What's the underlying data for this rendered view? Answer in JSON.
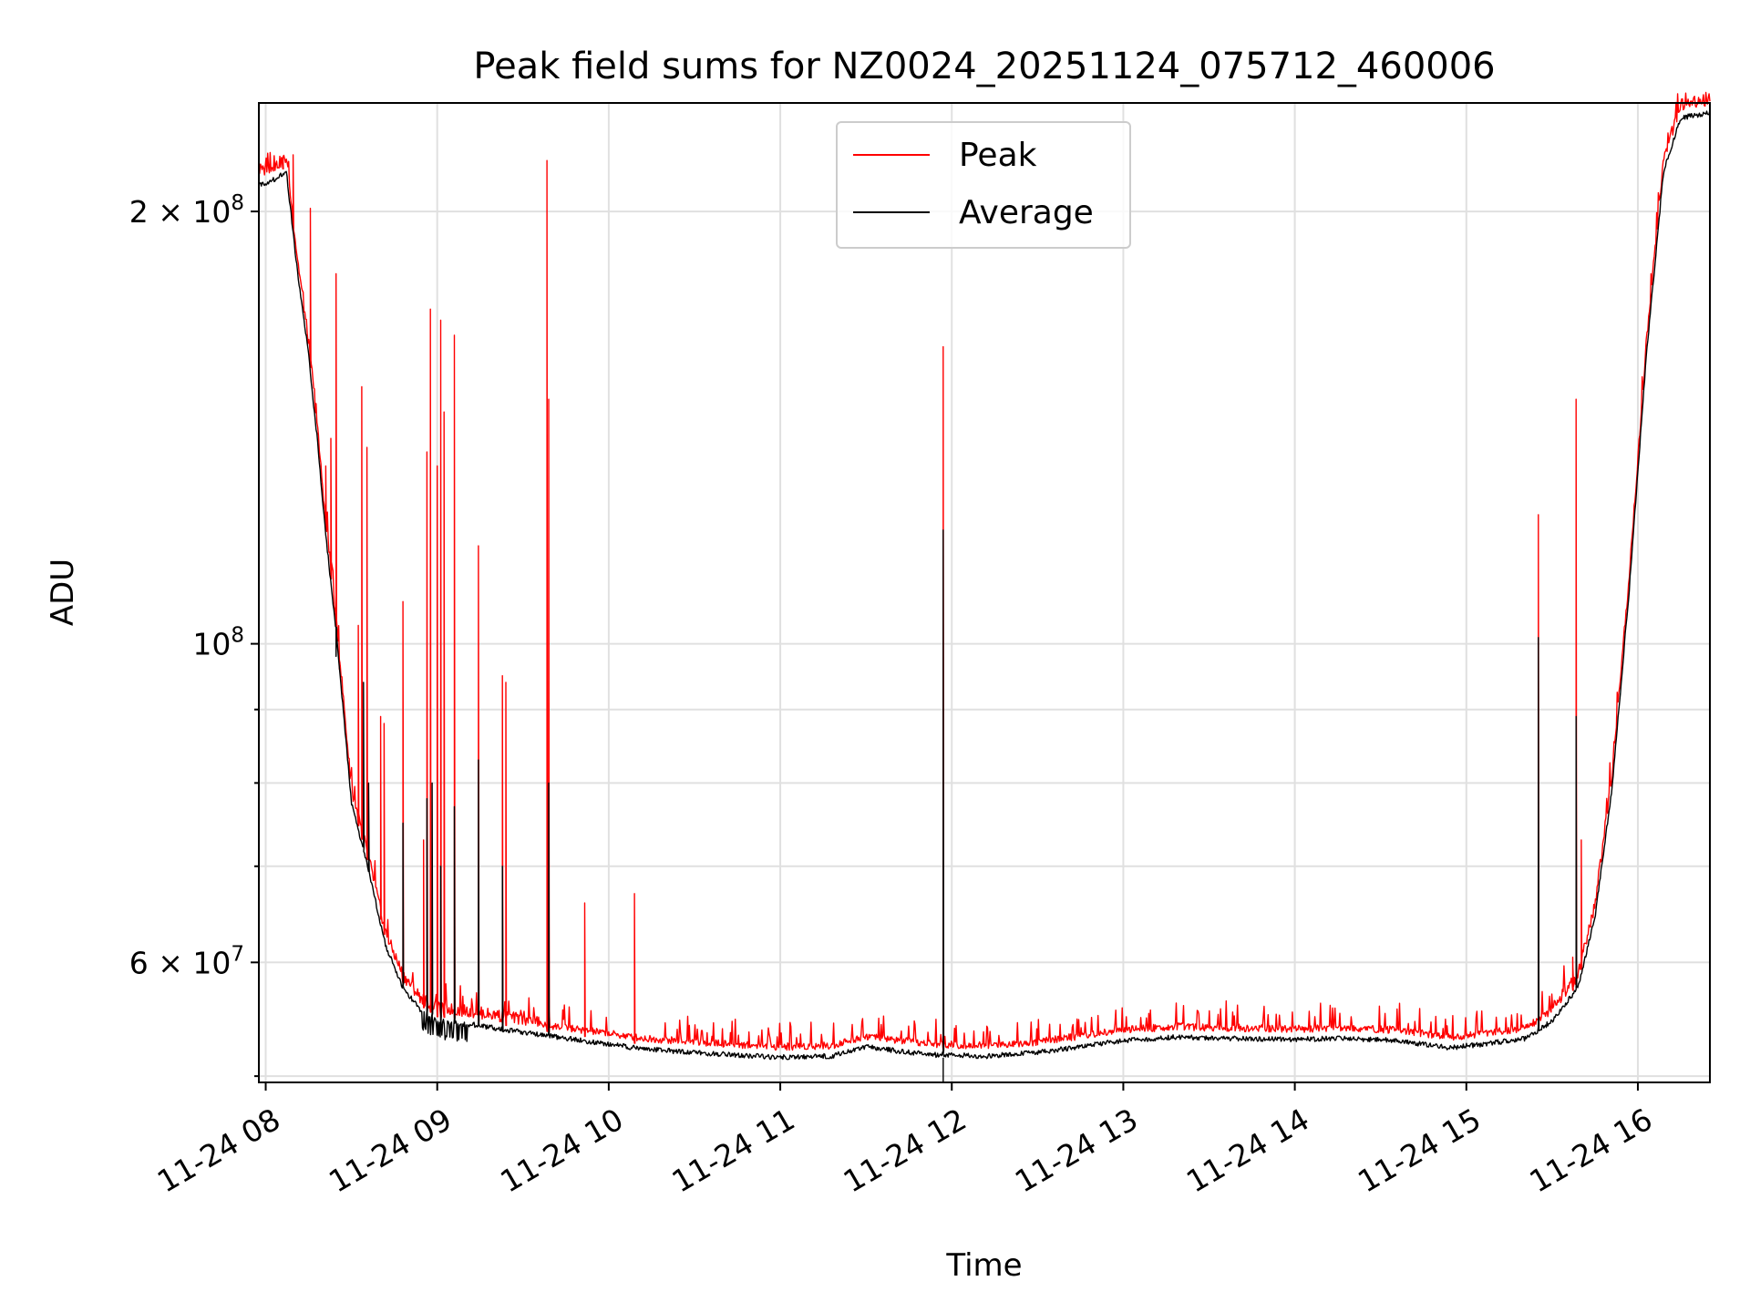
{
  "chart_data": {
    "type": "line",
    "title": "Peak field sums for NZ0024_20251124_075712_460006",
    "xlabel": "Time",
    "ylabel": "ADU",
    "yscale": "log",
    "xlim": [
      7.96,
      16.42
    ],
    "ylim": [
      49500000,
      238000000
    ],
    "grid": true,
    "legend_position": "top-center",
    "x_ticks": [
      {
        "value": 8,
        "label": "11-24 08"
      },
      {
        "value": 9,
        "label": "11-24 09"
      },
      {
        "value": 10,
        "label": "11-24 10"
      },
      {
        "value": 11,
        "label": "11-24 11"
      },
      {
        "value": 12,
        "label": "11-24 12"
      },
      {
        "value": 13,
        "label": "11-24 13"
      },
      {
        "value": 14,
        "label": "11-24 14"
      },
      {
        "value": 15,
        "label": "11-24 15"
      },
      {
        "value": 16,
        "label": "11-24 16"
      }
    ],
    "y_major_ticks": [
      {
        "value": 60000000,
        "base": "6 × 10",
        "exp": "7"
      },
      {
        "value": 100000000,
        "base": "10",
        "exp": "8"
      },
      {
        "value": 200000000,
        "base": "2 × 10",
        "exp": "8"
      }
    ],
    "y_minor_ticks": [
      50000000,
      70000000,
      80000000,
      90000000
    ],
    "baseline": [
      [
        7.96,
        210000000
      ],
      [
        8.05,
        212000000
      ],
      [
        8.12,
        215000000
      ],
      [
        8.18,
        185000000
      ],
      [
        8.25,
        160000000
      ],
      [
        8.3,
        140000000
      ],
      [
        8.35,
        120000000
      ],
      [
        8.42,
        100000000
      ],
      [
        8.5,
        78000000
      ],
      [
        8.6,
        70000000
      ],
      [
        8.7,
        62000000
      ],
      [
        8.8,
        58000000
      ],
      [
        8.9,
        56000000
      ],
      [
        9.0,
        55000000
      ],
      [
        9.2,
        54700000
      ],
      [
        9.5,
        54000000
      ],
      [
        9.8,
        53400000
      ],
      [
        10.2,
        52600000
      ],
      [
        10.6,
        52200000
      ],
      [
        11.0,
        51900000
      ],
      [
        11.3,
        52000000
      ],
      [
        11.5,
        52800000
      ],
      [
        11.7,
        52400000
      ],
      [
        11.9,
        52100000
      ],
      [
        12.2,
        52000000
      ],
      [
        12.5,
        52300000
      ],
      [
        12.8,
        52900000
      ],
      [
        13.0,
        53300000
      ],
      [
        13.3,
        53600000
      ],
      [
        13.6,
        53500000
      ],
      [
        14.0,
        53400000
      ],
      [
        14.3,
        53500000
      ],
      [
        14.6,
        53300000
      ],
      [
        14.9,
        52700000
      ],
      [
        15.1,
        53000000
      ],
      [
        15.35,
        53500000
      ],
      [
        15.5,
        55000000
      ],
      [
        15.65,
        58000000
      ],
      [
        15.75,
        65000000
      ],
      [
        15.85,
        80000000
      ],
      [
        15.95,
        110000000
      ],
      [
        16.05,
        160000000
      ],
      [
        16.15,
        215000000
      ],
      [
        16.25,
        234000000
      ],
      [
        16.42,
        236000000
      ]
    ],
    "series": [
      {
        "name": "Peak",
        "color": "#ff0000",
        "spikes": [
          [
            8.1,
            218000000
          ],
          [
            8.16,
            219000000
          ],
          [
            8.26,
            201000000
          ],
          [
            8.35,
            133000000
          ],
          [
            8.38,
            139000000
          ],
          [
            8.41,
            181000000
          ],
          [
            8.43,
            96000000
          ],
          [
            8.54,
            103000000
          ],
          [
            8.56,
            151000000
          ],
          [
            8.59,
            137000000
          ],
          [
            8.67,
            89000000
          ],
          [
            8.69,
            88000000
          ],
          [
            8.8,
            107000000
          ],
          [
            8.92,
            73000000
          ],
          [
            8.94,
            136000000
          ],
          [
            8.96,
            171000000
          ],
          [
            9.0,
            133000000
          ],
          [
            9.02,
            168000000
          ],
          [
            9.04,
            145000000
          ],
          [
            9.1,
            164000000
          ],
          [
            9.24,
            117000000
          ],
          [
            9.38,
            95000000
          ],
          [
            9.4,
            94000000
          ],
          [
            9.64,
            217000000
          ],
          [
            9.65,
            148000000
          ],
          [
            9.86,
            66000000
          ],
          [
            10.15,
            67000000
          ],
          [
            11.95,
            161000000
          ],
          [
            15.42,
            123000000
          ],
          [
            15.62,
            60500000
          ],
          [
            15.64,
            148000000
          ],
          [
            15.67,
            73000000
          ]
        ]
      },
      {
        "name": "Average",
        "color": "#000000",
        "spikes": [
          [
            8.41,
            98000000
          ],
          [
            8.57,
            94000000
          ],
          [
            8.6,
            80000000
          ],
          [
            8.8,
            75000000
          ],
          [
            8.94,
            78000000
          ],
          [
            8.97,
            80000000
          ],
          [
            9.02,
            70000000
          ],
          [
            9.1,
            77000000
          ],
          [
            9.24,
            83000000
          ],
          [
            9.38,
            70000000
          ],
          [
            9.65,
            80000000
          ],
          [
            11.95,
            120000000
          ],
          [
            15.42,
            101000000
          ],
          [
            15.64,
            89000000
          ]
        ]
      }
    ]
  }
}
